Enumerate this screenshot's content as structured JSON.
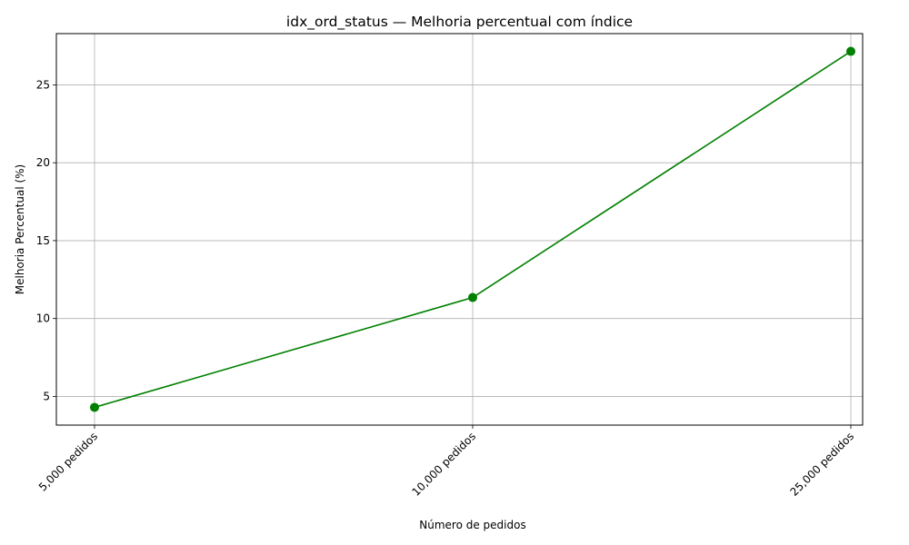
{
  "chart_data": {
    "type": "line",
    "title": "idx_ord_status — Melhoria percentual com índice",
    "xlabel": "Número de pedidos",
    "ylabel": "Melhoria Percentual (%)",
    "categories": [
      "5,000 pedidos",
      "10,000 pedidos",
      "25,000 pedidos"
    ],
    "series": [
      {
        "values": [
          4.3,
          11.35,
          27.15
        ],
        "color": "#008000",
        "marker": "circle"
      }
    ],
    "yticks": [
      5,
      10,
      15,
      20,
      25
    ],
    "ylim": [
      3.16,
      28.29
    ],
    "grid": true,
    "x_tick_rotation_deg": 45
  }
}
